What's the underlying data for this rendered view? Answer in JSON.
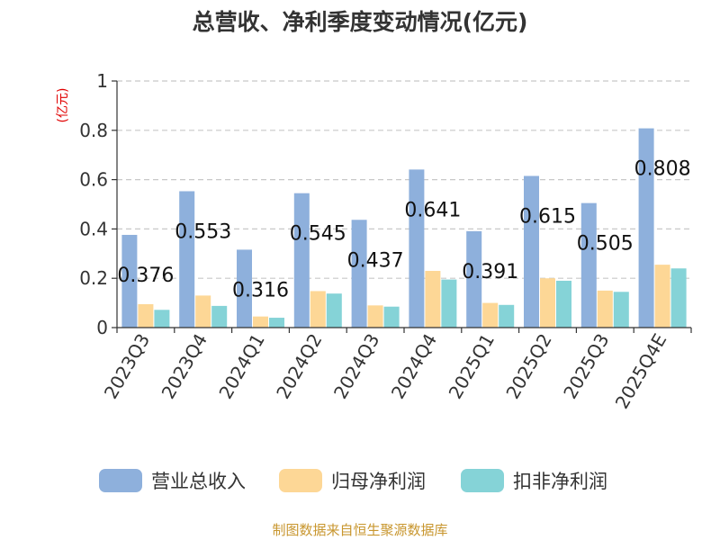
{
  "chart_data": {
    "type": "bar",
    "title": "总营收、净利季度变动情况(亿元)",
    "unit_label": "(亿元)",
    "categories": [
      "2023Q3",
      "2023Q4",
      "2024Q1",
      "2024Q2",
      "2024Q3",
      "2024Q4",
      "2025Q1",
      "2025Q2",
      "2025Q3",
      "2025Q4E"
    ],
    "series": [
      {
        "name": "营业总收入",
        "color": "#8eb0dc",
        "values": [
          0.376,
          0.553,
          0.316,
          0.545,
          0.437,
          0.641,
          0.391,
          0.615,
          0.505,
          0.808
        ]
      },
      {
        "name": "归母净利润",
        "color": "#fdd796",
        "values": [
          0.095,
          0.13,
          0.045,
          0.148,
          0.09,
          0.23,
          0.1,
          0.2,
          0.15,
          0.255
        ]
      },
      {
        "name": "扣非净利润",
        "color": "#85d3d7",
        "values": [
          0.072,
          0.088,
          0.04,
          0.138,
          0.085,
          0.195,
          0.092,
          0.19,
          0.145,
          0.24
        ]
      }
    ],
    "data_labels": [
      "0.376",
      "0.553",
      "0.316",
      "0.545",
      "0.437",
      "0.641",
      "0.391",
      "0.615",
      "0.505",
      "0.808"
    ],
    "y_ticks": [
      "0",
      "0.2",
      "0.4",
      "0.6",
      "0.8",
      "1"
    ],
    "ylim": [
      0,
      1
    ],
    "grid": true,
    "legend_position": "bottom"
  },
  "source": "制图数据来自恒生聚源数据库"
}
